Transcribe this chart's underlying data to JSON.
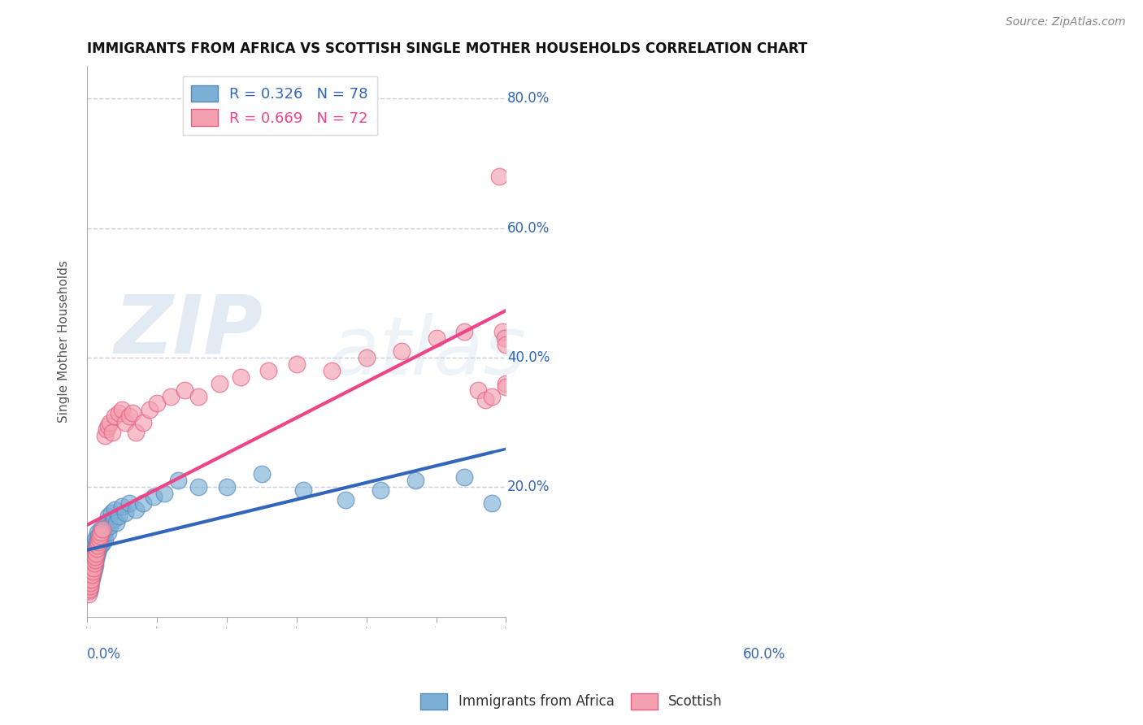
{
  "title": "IMMIGRANTS FROM AFRICA VS SCOTTISH SINGLE MOTHER HOUSEHOLDS CORRELATION CHART",
  "source": "Source: ZipAtlas.com",
  "ylabel": "Single Mother Households",
  "xlim": [
    0.0,
    0.6
  ],
  "ylim": [
    0.0,
    0.85
  ],
  "blue_R": 0.326,
  "blue_N": 78,
  "pink_R": 0.669,
  "pink_N": 72,
  "blue_color": "#7BAFD4",
  "pink_color": "#F4A0B0",
  "blue_edge_color": "#5588BB",
  "pink_edge_color": "#E06080",
  "blue_line_color": "#3366BB",
  "pink_line_color": "#EE4488",
  "legend_blue_label": "R = 0.326   N = 78",
  "legend_pink_label": "R = 0.669   N = 72",
  "legend_label1": "Immigrants from Africa",
  "legend_label2": "Scottish",
  "watermark_zip": "ZIP",
  "watermark_atlas": "atlas",
  "background_color": "#FFFFFF",
  "grid_color": "#CCCCDD",
  "title_fontsize": 12,
  "blue_scatter_x": [
    0.001,
    0.002,
    0.002,
    0.003,
    0.003,
    0.003,
    0.004,
    0.004,
    0.004,
    0.005,
    0.005,
    0.005,
    0.005,
    0.006,
    0.006,
    0.006,
    0.007,
    0.007,
    0.007,
    0.008,
    0.008,
    0.008,
    0.009,
    0.009,
    0.009,
    0.01,
    0.01,
    0.01,
    0.011,
    0.011,
    0.012,
    0.012,
    0.012,
    0.013,
    0.013,
    0.014,
    0.014,
    0.015,
    0.015,
    0.016,
    0.016,
    0.017,
    0.018,
    0.019,
    0.02,
    0.02,
    0.022,
    0.023,
    0.024,
    0.025,
    0.026,
    0.027,
    0.028,
    0.03,
    0.03,
    0.032,
    0.035,
    0.038,
    0.04,
    0.042,
    0.045,
    0.05,
    0.055,
    0.06,
    0.07,
    0.08,
    0.095,
    0.11,
    0.13,
    0.16,
    0.2,
    0.25,
    0.31,
    0.37,
    0.42,
    0.47,
    0.54,
    0.58
  ],
  "blue_scatter_y": [
    0.05,
    0.045,
    0.06,
    0.04,
    0.055,
    0.07,
    0.045,
    0.06,
    0.08,
    0.05,
    0.065,
    0.075,
    0.09,
    0.055,
    0.07,
    0.085,
    0.06,
    0.075,
    0.095,
    0.065,
    0.08,
    0.1,
    0.07,
    0.085,
    0.11,
    0.075,
    0.09,
    0.115,
    0.08,
    0.1,
    0.085,
    0.1,
    0.12,
    0.09,
    0.11,
    0.095,
    0.115,
    0.1,
    0.13,
    0.105,
    0.125,
    0.11,
    0.115,
    0.12,
    0.11,
    0.135,
    0.125,
    0.115,
    0.13,
    0.14,
    0.12,
    0.135,
    0.145,
    0.13,
    0.155,
    0.14,
    0.16,
    0.15,
    0.165,
    0.145,
    0.155,
    0.17,
    0.16,
    0.175,
    0.165,
    0.175,
    0.185,
    0.19,
    0.21,
    0.2,
    0.2,
    0.22,
    0.195,
    0.18,
    0.195,
    0.21,
    0.215,
    0.175
  ],
  "pink_scatter_x": [
    0.001,
    0.001,
    0.002,
    0.002,
    0.002,
    0.003,
    0.003,
    0.003,
    0.004,
    0.004,
    0.004,
    0.005,
    0.005,
    0.005,
    0.006,
    0.006,
    0.006,
    0.007,
    0.007,
    0.008,
    0.008,
    0.009,
    0.009,
    0.01,
    0.01,
    0.011,
    0.011,
    0.012,
    0.013,
    0.014,
    0.015,
    0.016,
    0.017,
    0.018,
    0.02,
    0.022,
    0.025,
    0.028,
    0.03,
    0.033,
    0.036,
    0.04,
    0.045,
    0.05,
    0.055,
    0.06,
    0.065,
    0.07,
    0.08,
    0.09,
    0.1,
    0.12,
    0.14,
    0.16,
    0.19,
    0.22,
    0.26,
    0.3,
    0.35,
    0.4,
    0.45,
    0.5,
    0.54,
    0.56,
    0.57,
    0.58,
    0.59,
    0.595,
    0.598,
    0.599,
    0.6,
    0.599
  ],
  "pink_scatter_y": [
    0.04,
    0.055,
    0.035,
    0.05,
    0.065,
    0.042,
    0.058,
    0.07,
    0.048,
    0.062,
    0.075,
    0.052,
    0.068,
    0.08,
    0.058,
    0.072,
    0.085,
    0.065,
    0.078,
    0.07,
    0.088,
    0.075,
    0.092,
    0.082,
    0.095,
    0.088,
    0.1,
    0.092,
    0.098,
    0.105,
    0.11,
    0.115,
    0.12,
    0.125,
    0.13,
    0.135,
    0.28,
    0.29,
    0.295,
    0.3,
    0.285,
    0.31,
    0.315,
    0.32,
    0.3,
    0.31,
    0.315,
    0.285,
    0.3,
    0.32,
    0.33,
    0.34,
    0.35,
    0.34,
    0.36,
    0.37,
    0.38,
    0.39,
    0.38,
    0.4,
    0.41,
    0.43,
    0.44,
    0.35,
    0.335,
    0.34,
    0.68,
    0.44,
    0.43,
    0.42,
    0.36,
    0.355
  ]
}
